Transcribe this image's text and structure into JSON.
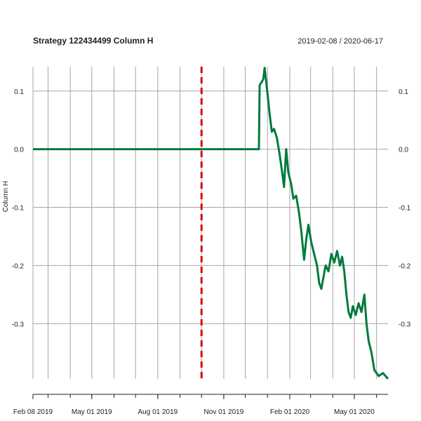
{
  "chart_data": {
    "type": "line",
    "title": "Strategy 122434499 Column H",
    "date_range": "2019-02-08 / 2020-06-17",
    "ylabel": "Column H",
    "xlim": [
      "2019-02-08",
      "2020-06-17"
    ],
    "ylim": [
      -0.395,
      0.142
    ],
    "grid": true,
    "x_ticks": [
      {
        "label": "Feb 08 2019",
        "date": "2019-02-08"
      },
      {
        "label": "May 01 2019",
        "date": "2019-05-01"
      },
      {
        "label": "Aug 01 2019",
        "date": "2019-08-01"
      },
      {
        "label": "Nov 01 2019",
        "date": "2019-11-01"
      },
      {
        "label": "Feb 01 2020",
        "date": "2020-02-01"
      },
      {
        "label": "May 01 2020",
        "date": "2020-05-01"
      }
    ],
    "y_ticks": [
      {
        "label": "0.1",
        "value": 0.1
      },
      {
        "label": "0.0",
        "value": 0.0
      },
      {
        "label": "-0.1",
        "value": -0.1
      },
      {
        "label": "-0.2",
        "value": -0.2
      },
      {
        "label": "-0.3",
        "value": -0.3
      }
    ],
    "vline": {
      "date": "2019-10-01",
      "color": "#dd0000",
      "style": "dashed"
    },
    "series": [
      {
        "color": "#007a3d",
        "points": [
          [
            "2019-02-08",
            0.0
          ],
          [
            "2019-12-20",
            0.0
          ],
          [
            "2019-12-21",
            0.11
          ],
          [
            "2019-12-26",
            0.12
          ],
          [
            "2019-12-28",
            0.14
          ],
          [
            "2020-01-01",
            0.095
          ],
          [
            "2020-01-04",
            0.06
          ],
          [
            "2020-01-07",
            0.03
          ],
          [
            "2020-01-10",
            0.035
          ],
          [
            "2020-01-14",
            0.02
          ],
          [
            "2020-01-18",
            -0.01
          ],
          [
            "2020-01-22",
            -0.045
          ],
          [
            "2020-01-24",
            -0.065
          ],
          [
            "2020-01-27",
            0.0
          ],
          [
            "2020-01-30",
            -0.04
          ],
          [
            "2020-02-03",
            -0.06
          ],
          [
            "2020-02-06",
            -0.085
          ],
          [
            "2020-02-10",
            -0.08
          ],
          [
            "2020-02-14",
            -0.11
          ],
          [
            "2020-02-17",
            -0.14
          ],
          [
            "2020-02-19",
            -0.165
          ],
          [
            "2020-02-21",
            -0.19
          ],
          [
            "2020-02-24",
            -0.155
          ],
          [
            "2020-02-27",
            -0.13
          ],
          [
            "2020-03-02",
            -0.16
          ],
          [
            "2020-03-06",
            -0.18
          ],
          [
            "2020-03-10",
            -0.2
          ],
          [
            "2020-03-13",
            -0.23
          ],
          [
            "2020-03-16",
            -0.24
          ],
          [
            "2020-03-19",
            -0.22
          ],
          [
            "2020-03-22",
            -0.2
          ],
          [
            "2020-03-26",
            -0.21
          ],
          [
            "2020-03-30",
            -0.18
          ],
          [
            "2020-04-03",
            -0.195
          ],
          [
            "2020-04-07",
            -0.175
          ],
          [
            "2020-04-11",
            -0.2
          ],
          [
            "2020-04-14",
            -0.185
          ],
          [
            "2020-04-17",
            -0.21
          ],
          [
            "2020-04-20",
            -0.25
          ],
          [
            "2020-04-23",
            -0.28
          ],
          [
            "2020-04-26",
            -0.29
          ],
          [
            "2020-04-29",
            -0.27
          ],
          [
            "2020-05-03",
            -0.285
          ],
          [
            "2020-05-07",
            -0.265
          ],
          [
            "2020-05-11",
            -0.28
          ],
          [
            "2020-05-15",
            -0.25
          ],
          [
            "2020-05-18",
            -0.3
          ],
          [
            "2020-05-21",
            -0.33
          ],
          [
            "2020-05-25",
            -0.35
          ],
          [
            "2020-05-29",
            -0.38
          ],
          [
            "2020-06-04",
            -0.39
          ],
          [
            "2020-06-10",
            -0.385
          ],
          [
            "2020-06-17",
            -0.395
          ]
        ]
      }
    ]
  }
}
